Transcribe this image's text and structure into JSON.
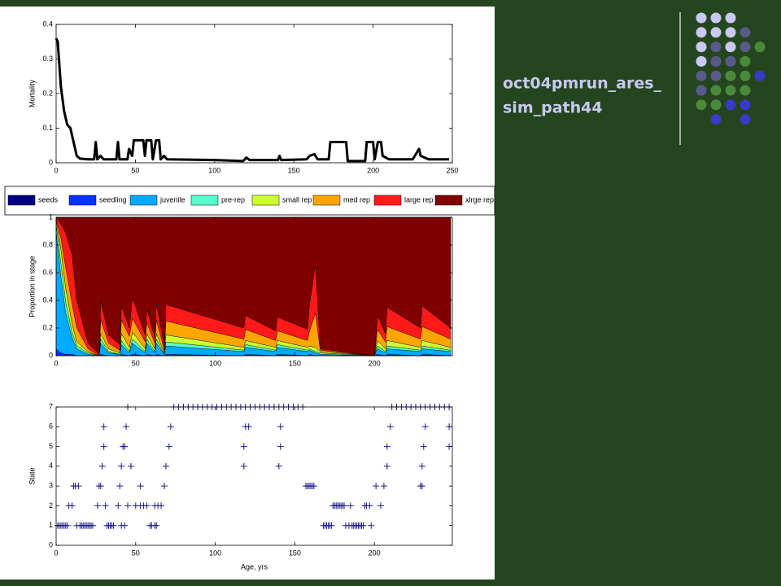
{
  "title_lines": [
    "oct04pmrun_ares_",
    "sim_path44"
  ],
  "chart_data": [
    {
      "type": "line",
      "y_label": "Mortality",
      "color": "#000000",
      "xlim": [
        0,
        250
      ],
      "xticks": [
        0,
        50,
        100,
        150,
        200,
        250
      ],
      "ylim": [
        0,
        0.4
      ],
      "yticks": [
        0,
        0.1,
        0.2,
        0.3,
        0.4
      ],
      "x": [
        0,
        1,
        3,
        5,
        7,
        9,
        11,
        13,
        15,
        20,
        24,
        25,
        26,
        28,
        30,
        38,
        39,
        40,
        45,
        46,
        48,
        49,
        55,
        56,
        57,
        60,
        61,
        63,
        65,
        66,
        68,
        70,
        100,
        118,
        120,
        122,
        140,
        141,
        142,
        158,
        160,
        163,
        165,
        172,
        173,
        183,
        184,
        195,
        196,
        200,
        201,
        203,
        205,
        206,
        210,
        225,
        229,
        230,
        235,
        248
      ],
      "values": [
        0.36,
        0.35,
        0.22,
        0.15,
        0.11,
        0.1,
        0.06,
        0.02,
        0.012,
        0.01,
        0.01,
        0.06,
        0.01,
        0.02,
        0.01,
        0.01,
        0.06,
        0.01,
        0.01,
        0.04,
        0.02,
        0.065,
        0.065,
        0.02,
        0.065,
        0.065,
        0.01,
        0.065,
        0.065,
        0.01,
        0.02,
        0.01,
        0.008,
        0.005,
        0.015,
        0.008,
        0.008,
        0.02,
        0.008,
        0.01,
        0.02,
        0.025,
        0.01,
        0.01,
        0.06,
        0.06,
        0.005,
        0.005,
        0.06,
        0.06,
        0.01,
        0.06,
        0.06,
        0.02,
        0.01,
        0.01,
        0.04,
        0.02,
        0.01,
        0.01
      ]
    },
    {
      "type": "stacked_area",
      "y_label": "Proportion in stage",
      "xlim": [
        0,
        249
      ],
      "xticks": [
        0,
        50,
        100,
        150,
        200
      ],
      "ylim": [
        0,
        1
      ],
      "yticks": [
        0,
        0.2,
        0.4,
        0.6,
        0.8,
        1
      ],
      "x": [
        0,
        3,
        6,
        10,
        13,
        20,
        27,
        28,
        33,
        40,
        41,
        46,
        48,
        56,
        57,
        62,
        63,
        68,
        69,
        118,
        119,
        138,
        139,
        158,
        159,
        163,
        166,
        200,
        202,
        207,
        208,
        229,
        230,
        248
      ],
      "series": [
        {
          "name": "seeds",
          "color": "#000080",
          "values": [
            0,
            0,
            0,
            0,
            0,
            0,
            0,
            0,
            0,
            0,
            0,
            0,
            0,
            0,
            0,
            0,
            0,
            0,
            0,
            0,
            0,
            0,
            0,
            0,
            0,
            0,
            0,
            0,
            0,
            0,
            0,
            0,
            0,
            0
          ]
        },
        {
          "name": "seedling",
          "color": "#0033ff",
          "values": [
            0.05,
            0.02,
            0.01,
            0.01,
            0,
            0,
            0,
            0.01,
            0,
            0,
            0.01,
            0,
            0.01,
            0,
            0.01,
            0,
            0.01,
            0,
            0.01,
            0,
            0.01,
            0,
            0.01,
            0,
            0.01,
            0,
            0,
            0,
            0.01,
            0,
            0.01,
            0,
            0.01,
            0
          ]
        },
        {
          "name": "juvenile",
          "color": "#00aaff",
          "values": [
            0.85,
            0.55,
            0.3,
            0.12,
            0.05,
            0.01,
            0,
            0.08,
            0.02,
            0.01,
            0.07,
            0.02,
            0.08,
            0.02,
            0.08,
            0.02,
            0.08,
            0.01,
            0.06,
            0.03,
            0.05,
            0.03,
            0.05,
            0.03,
            0.03,
            0.02,
            0.01,
            0,
            0.04,
            0.02,
            0.04,
            0.03,
            0.04,
            0.03
          ]
        },
        {
          "name": "pre-rep",
          "color": "#55ffcc",
          "values": [
            0.05,
            0.1,
            0.08,
            0.04,
            0.02,
            0.01,
            0,
            0.03,
            0.01,
            0,
            0.03,
            0.01,
            0.03,
            0.01,
            0.03,
            0.01,
            0.03,
            0,
            0.03,
            0.01,
            0.02,
            0.01,
            0.02,
            0.01,
            0.01,
            0.01,
            0.01,
            0,
            0.02,
            0.01,
            0.02,
            0.01,
            0.02,
            0.01
          ]
        },
        {
          "name": "small rep",
          "color": "#ccff33",
          "values": [
            0.03,
            0.1,
            0.1,
            0.06,
            0.03,
            0.01,
            0,
            0.04,
            0.02,
            0.01,
            0.05,
            0.03,
            0.05,
            0.02,
            0.04,
            0.02,
            0.04,
            0.01,
            0.05,
            0.02,
            0.03,
            0.02,
            0.03,
            0.02,
            0.02,
            0.03,
            0.01,
            0,
            0.04,
            0.02,
            0.04,
            0.02,
            0.04,
            0.02
          ]
        },
        {
          "name": "med rep",
          "color": "#ffa500",
          "values": [
            0.01,
            0.08,
            0.15,
            0.15,
            0.1,
            0.02,
            0,
            0.1,
            0.04,
            0.02,
            0.1,
            0.08,
            0.1,
            0.05,
            0.08,
            0.04,
            0.1,
            0.02,
            0.1,
            0.06,
            0.08,
            0.05,
            0.07,
            0.05,
            0.1,
            0.25,
            0.01,
            0,
            0.08,
            0.05,
            0.1,
            0.06,
            0.1,
            0.06
          ]
        },
        {
          "name": "large rep",
          "color": "#ff1a1a",
          "values": [
            0.01,
            0.1,
            0.25,
            0.35,
            0.2,
            0.04,
            0.01,
            0.14,
            0.06,
            0.04,
            0.1,
            0.06,
            0.15,
            0.05,
            0.1,
            0.04,
            0.12,
            0.03,
            0.12,
            0.08,
            0.1,
            0.07,
            0.1,
            0.08,
            0.18,
            0.35,
            0.01,
            0,
            0.1,
            0.06,
            0.14,
            0.08,
            0.15,
            0.08
          ]
        },
        {
          "name": "xlrge rep",
          "color": "#800000",
          "values": [
            0,
            0.05,
            0.11,
            0.27,
            0.6,
            0.91,
            0.99,
            0.6,
            0.85,
            0.92,
            0.64,
            0.8,
            0.58,
            0.85,
            0.66,
            0.87,
            0.62,
            0.93,
            0.63,
            0.8,
            0.71,
            0.82,
            0.72,
            0.81,
            0.65,
            0.34,
            0.95,
            1,
            0.71,
            0.84,
            0.65,
            0.8,
            0.64,
            0.8
          ]
        }
      ]
    },
    {
      "type": "scatter",
      "x_label": "Age, yrs",
      "y_label": "State",
      "color": "#1a1a8c",
      "xlim": [
        0,
        249
      ],
      "xticks": [
        0,
        50,
        100,
        150,
        200
      ],
      "ylim": [
        0,
        7
      ],
      "yticks": [
        0,
        1,
        2,
        3,
        4,
        5,
        6,
        7
      ],
      "x": [
        45,
        74,
        77,
        80,
        83,
        86,
        89,
        92,
        95,
        98,
        101,
        104,
        107,
        110,
        113,
        116,
        119,
        122,
        125,
        128,
        131,
        134,
        137,
        140,
        143,
        146,
        149,
        152,
        155,
        211,
        214,
        217,
        220,
        223,
        226,
        229,
        232,
        235,
        238,
        241,
        244,
        247,
        30,
        44,
        72,
        119,
        121,
        141,
        210,
        232,
        247,
        30,
        42,
        43,
        71,
        118,
        141,
        208,
        231,
        247,
        29,
        41,
        47,
        69,
        118,
        140,
        208,
        230,
        11,
        12,
        14,
        27,
        28,
        40,
        53,
        68,
        157,
        158,
        159,
        160,
        161,
        162,
        201,
        206,
        229,
        230,
        8,
        10,
        26,
        31,
        39,
        45,
        50,
        53,
        55,
        57,
        62,
        64,
        66,
        174,
        175,
        176,
        177,
        178,
        179,
        180,
        181,
        185,
        194,
        195,
        197,
        204,
        1,
        2,
        3,
        4,
        5,
        6,
        7,
        13,
        15,
        16,
        17,
        18,
        19,
        20,
        21,
        22,
        23,
        32,
        33,
        34,
        35,
        36,
        41,
        43,
        59,
        60,
        62,
        63,
        168,
        169,
        170,
        171,
        172,
        173,
        182,
        184,
        186,
        187,
        188,
        189,
        190,
        191,
        192,
        193,
        198
      ],
      "values": [
        7,
        7,
        7,
        7,
        7,
        7,
        7,
        7,
        7,
        7,
        7,
        7,
        7,
        7,
        7,
        7,
        7,
        7,
        7,
        7,
        7,
        7,
        7,
        7,
        7,
        7,
        7,
        7,
        7,
        7,
        7,
        7,
        7,
        7,
        7,
        7,
        7,
        7,
        7,
        7,
        7,
        7,
        6,
        6,
        6,
        6,
        6,
        6,
        6,
        6,
        6,
        5,
        5,
        5,
        5,
        5,
        5,
        5,
        5,
        5,
        4,
        4,
        4,
        4,
        4,
        4,
        4,
        4,
        3,
        3,
        3,
        3,
        3,
        3,
        3,
        3,
        3,
        3,
        3,
        3,
        3,
        3,
        3,
        3,
        3,
        3,
        2,
        2,
        2,
        2,
        2,
        2,
        2,
        2,
        2,
        2,
        2,
        2,
        2,
        2,
        2,
        2,
        2,
        2,
        2,
        2,
        2,
        2,
        2,
        2,
        2,
        2,
        1,
        1,
        1,
        1,
        1,
        1,
        1,
        1,
        1,
        1,
        1,
        1,
        1,
        1,
        1,
        1,
        1,
        1,
        1,
        1,
        1,
        1,
        1,
        1,
        1,
        1,
        1,
        1,
        1,
        1,
        1,
        1,
        1,
        1,
        1,
        1,
        1,
        1,
        1,
        1,
        1,
        1,
        1,
        1,
        1
      ]
    }
  ]
}
